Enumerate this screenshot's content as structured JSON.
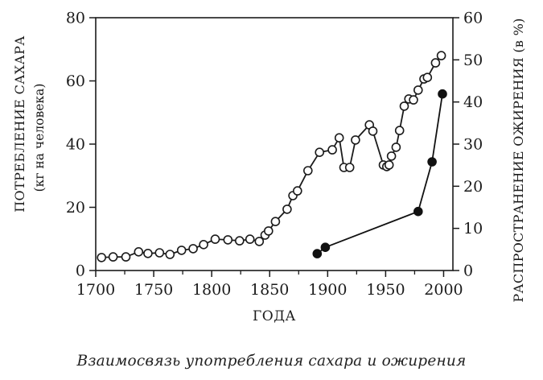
{
  "figure": {
    "caption": "Взаимосвязь употребления сахара и ожирения"
  },
  "chart_data": {
    "type": "line",
    "title": "",
    "xlabel": "ГОДА",
    "ylabel_left": "ПОТРЕБЛЕНИЕ САХАРА",
    "ylabel_left_sub": "(кг на человека)",
    "ylabel_right": "РАСПРОСТРАНЕНИЕ ОЖИРЕНИЯ (в %)",
    "xlim": [
      1700,
      2008
    ],
    "x_ticks": [
      1700,
      1750,
      1800,
      1850,
      1900,
      1950,
      2000
    ],
    "x_minor_ticks": [
      1725,
      1775,
      1825,
      1875,
      1925,
      1975
    ],
    "y_left": {
      "lim": [
        0,
        80
      ],
      "ticks": [
        0,
        20,
        40,
        60,
        80
      ]
    },
    "y_right": {
      "lim": [
        0,
        60
      ],
      "ticks": [
        0,
        10,
        20,
        30,
        40,
        50,
        60
      ]
    },
    "grid": false,
    "legend": false,
    "frame": "box",
    "axis_color": "#1b1b1b",
    "series": [
      {
        "name": "sugar-consumption",
        "axis": "left",
        "marker": "open-circle",
        "color": "#1b1b1b",
        "points": [
          [
            1705,
            4.1
          ],
          [
            1715,
            4.3
          ],
          [
            1726,
            4.3
          ],
          [
            1737,
            5.9
          ],
          [
            1745,
            5.4
          ],
          [
            1755,
            5.6
          ],
          [
            1764,
            5.1
          ],
          [
            1774,
            6.4
          ],
          [
            1784,
            6.9
          ],
          [
            1793,
            8.2
          ],
          [
            1803,
            9.9
          ],
          [
            1814,
            9.7
          ],
          [
            1824,
            9.4
          ],
          [
            1833,
            9.9
          ],
          [
            1841,
            9.2
          ],
          [
            1846,
            11.2
          ],
          [
            1849,
            12.5
          ],
          [
            1855,
            15.5
          ],
          [
            1865,
            19.4
          ],
          [
            1870,
            23.7
          ],
          [
            1874,
            25.2
          ],
          [
            1883,
            31.6
          ],
          [
            1893,
            37.4
          ],
          [
            1904,
            38.2
          ],
          [
            1910,
            42.0
          ],
          [
            1914,
            32.6
          ],
          [
            1919,
            32.6
          ],
          [
            1924,
            41.3
          ],
          [
            1936,
            46.1
          ],
          [
            1939,
            44.1
          ],
          [
            1948,
            33.4
          ],
          [
            1951,
            32.9
          ],
          [
            1953,
            33.4
          ],
          [
            1955,
            36.2
          ],
          [
            1959,
            39.0
          ],
          [
            1962,
            44.3
          ],
          [
            1966,
            52.0
          ],
          [
            1970,
            54.3
          ],
          [
            1974,
            54.0
          ],
          [
            1978,
            57.1
          ],
          [
            1983,
            60.6
          ],
          [
            1986,
            61.1
          ],
          [
            1993,
            65.7
          ],
          [
            1998,
            68.0
          ]
        ]
      },
      {
        "name": "obesity-prevalence",
        "axis": "right",
        "marker": "filled-circle",
        "color": "#111111",
        "points": [
          [
            1891,
            4.0
          ],
          [
            1898,
            5.5
          ],
          [
            1978,
            14.0
          ],
          [
            1990,
            25.8
          ],
          [
            1999,
            41.9
          ]
        ]
      }
    ]
  }
}
